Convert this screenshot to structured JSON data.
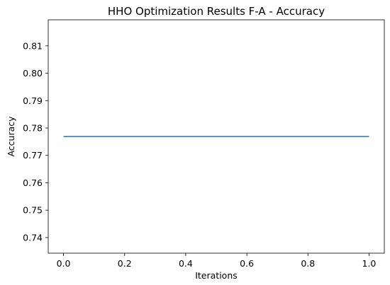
{
  "chart_data": {
    "type": "line",
    "title": "HHO Optimization Results F-A - Accuracy",
    "xlabel": "Iterations",
    "ylabel": "Accuracy",
    "xlim": [
      -0.05,
      1.05
    ],
    "ylim": [
      0.7343,
      0.8195
    ],
    "xticks": [
      0.0,
      0.2,
      0.4,
      0.6,
      0.8,
      1.0
    ],
    "xtick_labels": [
      "0.0",
      "0.2",
      "0.4",
      "0.6",
      "0.8",
      "1.0"
    ],
    "yticks": [
      0.74,
      0.75,
      0.76,
      0.77,
      0.78,
      0.79,
      0.8,
      0.81
    ],
    "ytick_labels": [
      "0.74",
      "0.75",
      "0.76",
      "0.77",
      "0.78",
      "0.79",
      "0.80",
      "0.81"
    ],
    "grid": false,
    "series": [
      {
        "x": [
          0.0,
          1.0
        ],
        "y": [
          0.7769,
          0.7769
        ],
        "color": "#1f77b4"
      }
    ]
  }
}
